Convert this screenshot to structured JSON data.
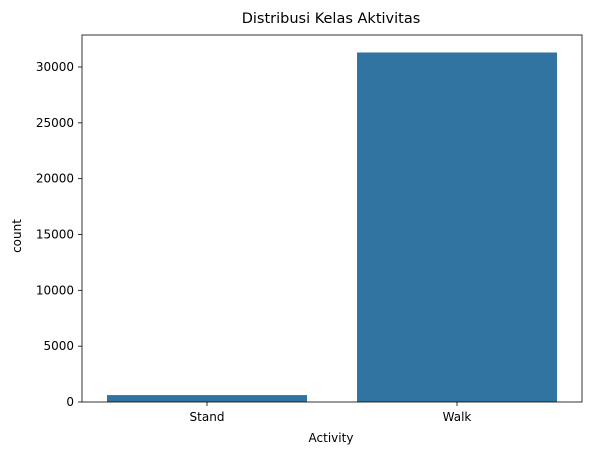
{
  "chart_data": {
    "type": "bar",
    "title": "Distribusi Kelas Aktivitas",
    "xlabel": "Activity",
    "ylabel": "count",
    "categories": [
      "Stand",
      "Walk"
    ],
    "values": [
      620,
      31300
    ],
    "ylim": [
      0,
      32865
    ],
    "yticks": [
      0,
      5000,
      10000,
      15000,
      20000,
      25000,
      30000
    ],
    "ytick_labels": [
      "0",
      "5000",
      "10000",
      "15000",
      "20000",
      "25000",
      "30000"
    ],
    "grid": false,
    "legend": "none",
    "bar_color": "#3274a1"
  }
}
